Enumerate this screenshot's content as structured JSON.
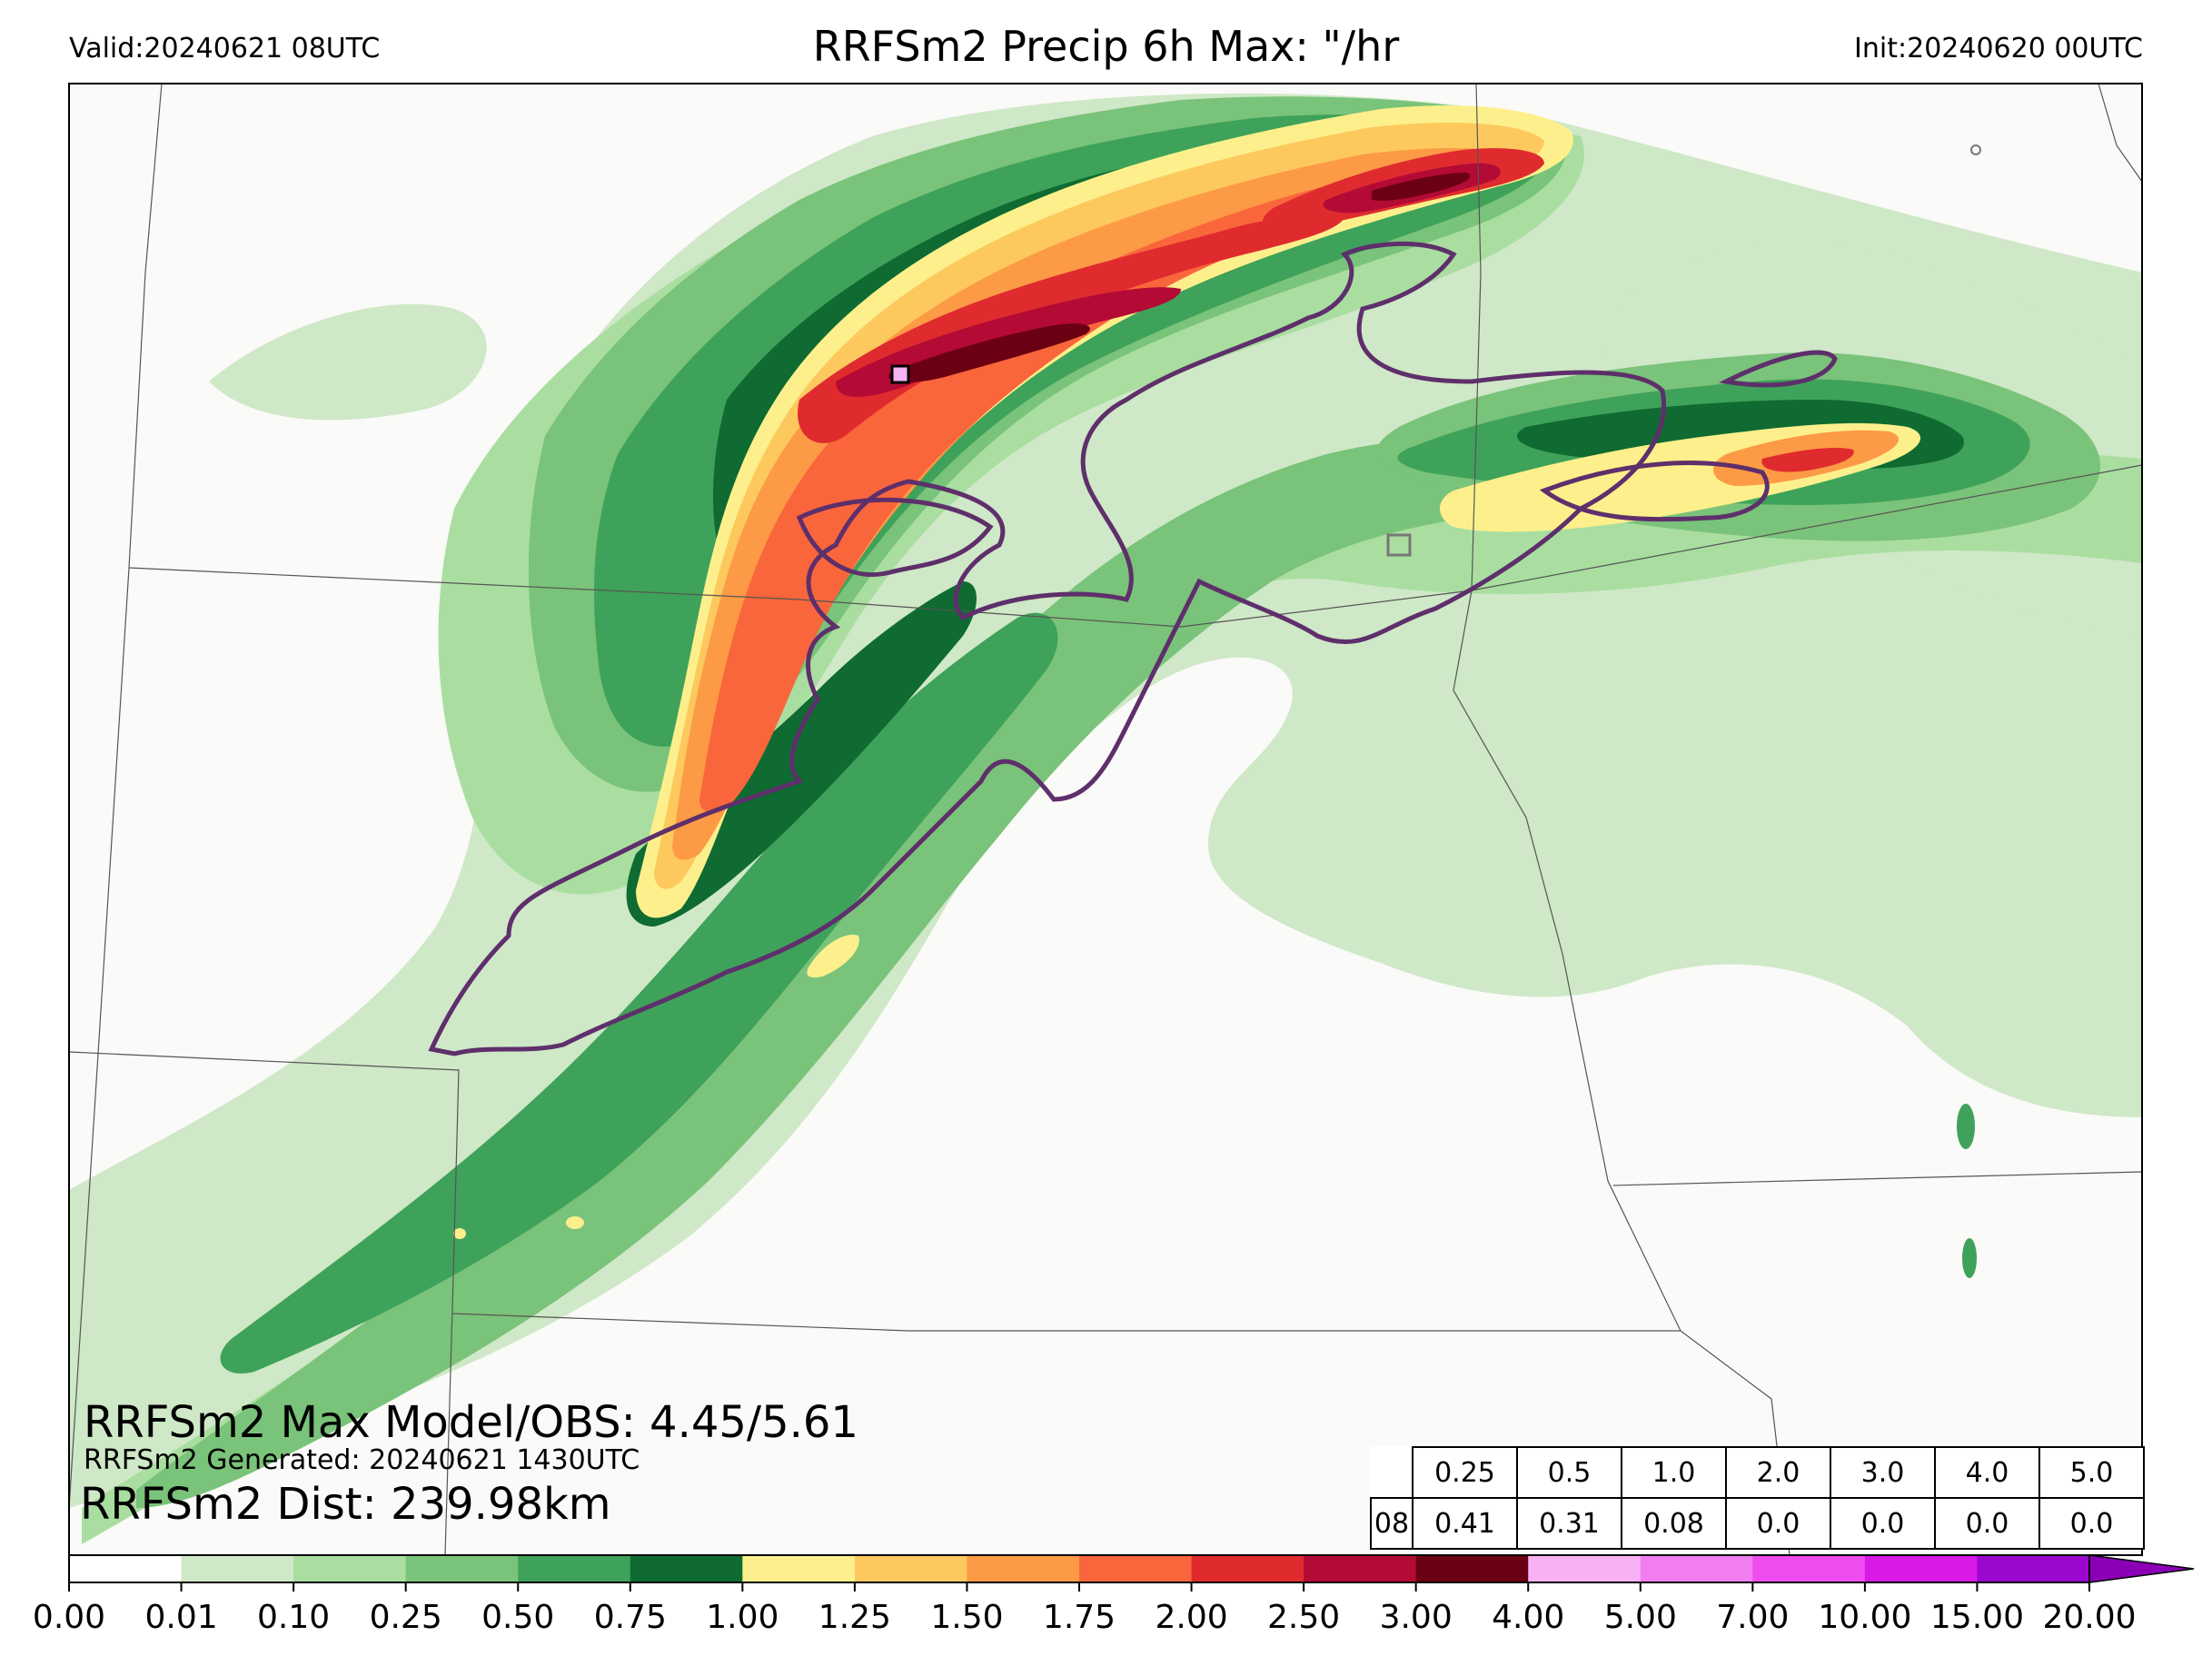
{
  "header": {
    "valid": "Valid:20240621 08UTC",
    "title": "RRFSm2 Precip 6h Max: \"/hr",
    "init": "Init:20240620 00UTC"
  },
  "annotations": {
    "max_line": "RRFSm2 Max Model/OBS: 4.45/5.61",
    "generated_line": "RRFSm2 Generated: 20240621 1430UTC",
    "dist_line": "RRFSm2 Dist: 239.98km"
  },
  "threshold_table": {
    "hour": "08",
    "thresholds": [
      "0.25",
      "0.5",
      "1.0",
      "2.0",
      "3.0",
      "4.0",
      "5.0"
    ],
    "values": [
      "0.41",
      "0.31",
      "0.08",
      "0.0",
      "0.0",
      "0.0",
      "0.0"
    ]
  },
  "colorbar": {
    "ticks": [
      "0.00",
      "0.01",
      "0.10",
      "0.25",
      "0.50",
      "0.75",
      "1.00",
      "1.25",
      "1.50",
      "1.75",
      "2.00",
      "2.50",
      "3.00",
      "4.00",
      "5.00",
      "7.00",
      "10.00",
      "15.00",
      "20.00"
    ],
    "colors": [
      "#ffffff",
      "#cfe8c7",
      "#a9dea0",
      "#7ac37a",
      "#3fa25a",
      "#0f6b31",
      "#fdf08c",
      "#fdc95e",
      "#fd9a45",
      "#f9663b",
      "#e02b2e",
      "#b30a36",
      "#6b0012",
      "#f8b1f2",
      "#f07ef0",
      "#ee4cee",
      "#d71ae6",
      "#9b07cf"
    ],
    "extend_color": "#8b00b5"
  },
  "colors": {
    "background": "#fafaf8",
    "obs_contour": "#5e2f6b",
    "state_lines": "#555555"
  }
}
